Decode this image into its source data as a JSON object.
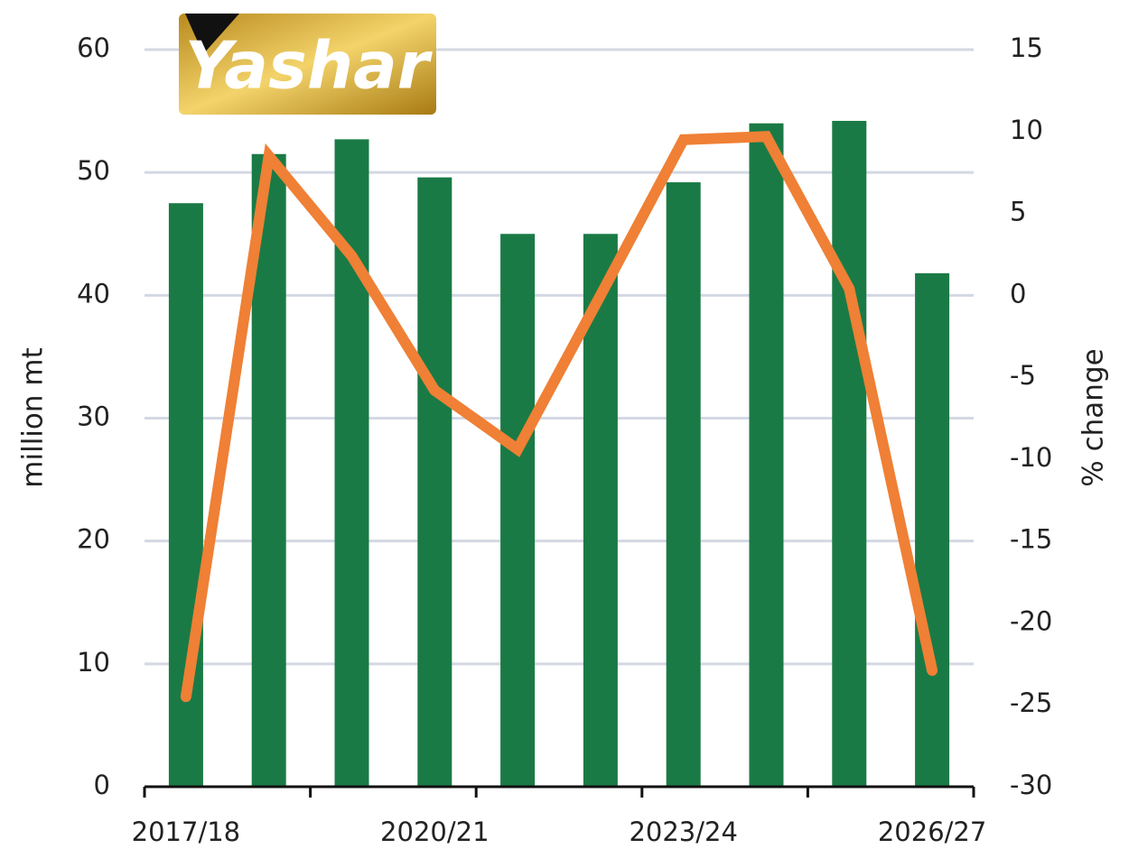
{
  "chart_data": {
    "type": "combo",
    "watermark": "Yashar",
    "categories": [
      "2017/18",
      null,
      null,
      "2020/21",
      null,
      null,
      "2023/24",
      null,
      null,
      "2026/27"
    ],
    "series": [
      {
        "type": "bar",
        "color": "#1a7a45",
        "values": [
          47.5,
          51.5,
          52.7,
          49.6,
          45.0,
          45.0,
          49.2,
          54.0,
          54.2,
          41.8
        ]
      },
      {
        "type": "line",
        "color": "#ef8035",
        "axis": "y2",
        "values": [
          -24.5,
          8.5,
          2.4,
          -5.8,
          -9.4,
          0.0,
          9.5,
          9.7,
          0.4,
          -22.9
        ]
      }
    ],
    "ylabel": "million mt",
    "y2label": "% change",
    "ylim": [
      0,
      60
    ],
    "yticks": [
      0,
      10,
      20,
      30,
      40,
      50,
      60
    ],
    "y2lim": [
      -30,
      15
    ],
    "y2ticks": [
      -30,
      -25,
      -20,
      -15,
      -10,
      -5,
      0,
      5,
      10,
      15
    ],
    "grid": true
  }
}
